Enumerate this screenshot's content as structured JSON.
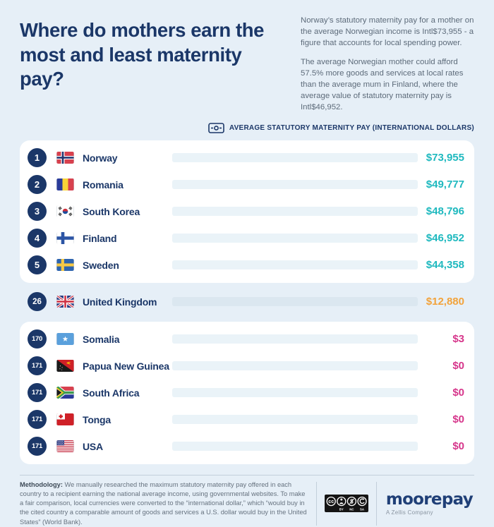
{
  "header": {
    "title": "Where do mothers earn the most and least maternity pay?",
    "intro_p1": "Norway’s statutory maternity pay for a mother on the average Norwegian income is Intl$73,955 - a figure that accounts for local spending power.",
    "intro_p2": "The average Norwegian mother could afford 57.5% more goods and services at local rates than the average mum in Finland, where the average value of statutory maternity pay is Intl$46,952."
  },
  "legend": {
    "label": "AVERAGE STATUTORY MATERNITY PAY (INTERNATIONAL DOLLARS)"
  },
  "chart_data": {
    "type": "bar",
    "title": "Where do mothers earn the most and least maternity pay?",
    "unit": "international dollars",
    "xlim": [
      0,
      73955
    ],
    "max_value": 73955,
    "legend": "AVERAGE STATUTORY MATERNITY PAY (INTERNATIONAL DOLLARS)",
    "rows": [
      {
        "rank": "1",
        "country": "Norway",
        "value": 73955,
        "value_label": "$73,955",
        "group": "top"
      },
      {
        "rank": "2",
        "country": "Romania",
        "value": 49777,
        "value_label": "$49,777",
        "group": "top"
      },
      {
        "rank": "3",
        "country": "South Korea",
        "value": 48796,
        "value_label": "$48,796",
        "group": "top"
      },
      {
        "rank": "4",
        "country": "Finland",
        "value": 46952,
        "value_label": "$46,952",
        "group": "top"
      },
      {
        "rank": "5",
        "country": "Sweden",
        "value": 44358,
        "value_label": "$44,358",
        "group": "top"
      },
      {
        "rank": "26",
        "country": "United Kingdom",
        "value": 12880,
        "value_label": "$12,880",
        "group": "uk"
      },
      {
        "rank": "170",
        "country": "Somalia",
        "value": 3,
        "value_label": "$3",
        "group": "bottom"
      },
      {
        "rank": "171",
        "country": "Papua New Guinea",
        "value": 0,
        "value_label": "$0",
        "group": "bottom"
      },
      {
        "rank": "171",
        "country": "South Africa",
        "value": 0,
        "value_label": "$0",
        "group": "bottom"
      },
      {
        "rank": "171",
        "country": "Tonga",
        "value": 0,
        "value_label": "$0",
        "group": "bottom"
      },
      {
        "rank": "171",
        "country": "USA",
        "value": 0,
        "value_label": "$0",
        "group": "bottom"
      }
    ]
  },
  "colors": {
    "navy": "#1b3768",
    "teal": "#1fb9bf",
    "orange": "#f2a33c",
    "pink": "#d6368b",
    "bg": "#e6eff7",
    "card": "#ffffff",
    "track": "#eaf3f8",
    "track-outer": "#dbe7f0"
  },
  "footer": {
    "methodology_label": "Methodology:",
    "methodology_text": " We manually researched the maximum statutory maternity pay offered in each country to a recipient earning the national average income, using governmental websites. To make a fair comparison, local currencies were converted to the “international dollar,” which “would buy in the cited country a comparable amount of goods and services a U.S. dollar would buy in the United States” (World Bank).",
    "cc_symbol_cc": "cc",
    "cc_symbol_nc": "$",
    "cc_labels": [
      "BY",
      "NC",
      "SA"
    ],
    "brand_name": "moorepay",
    "brand_tagline": "A Zellis Company"
  }
}
